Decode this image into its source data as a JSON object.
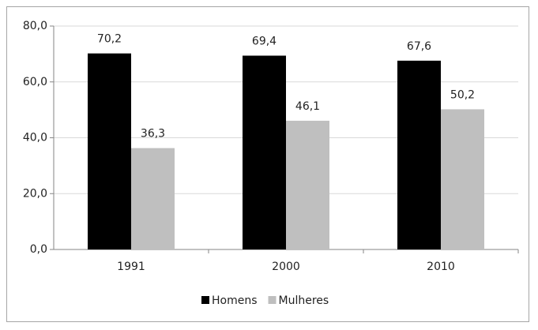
{
  "chart_data": {
    "type": "bar",
    "categories": [
      "1991",
      "2000",
      "2010"
    ],
    "series": [
      {
        "name": "Homens",
        "color": "#000000",
        "values": [
          70.2,
          69.4,
          67.6
        ],
        "value_labels": [
          "70,2",
          "69,4",
          "67,6"
        ]
      },
      {
        "name": "Mulheres",
        "color": "#bfbfbf",
        "values": [
          36.3,
          46.1,
          50.2
        ],
        "value_labels": [
          "36,3",
          "46,1",
          "50,2"
        ]
      }
    ],
    "ylim": [
      0,
      80
    ],
    "yticks": [
      {
        "value": 0,
        "label": "0,0"
      },
      {
        "value": 20,
        "label": "20,0"
      },
      {
        "value": 40,
        "label": "40,0"
      },
      {
        "value": 60,
        "label": "60,0"
      },
      {
        "value": 80,
        "label": "80,0"
      }
    ],
    "grid": true,
    "legend": "bottom"
  }
}
